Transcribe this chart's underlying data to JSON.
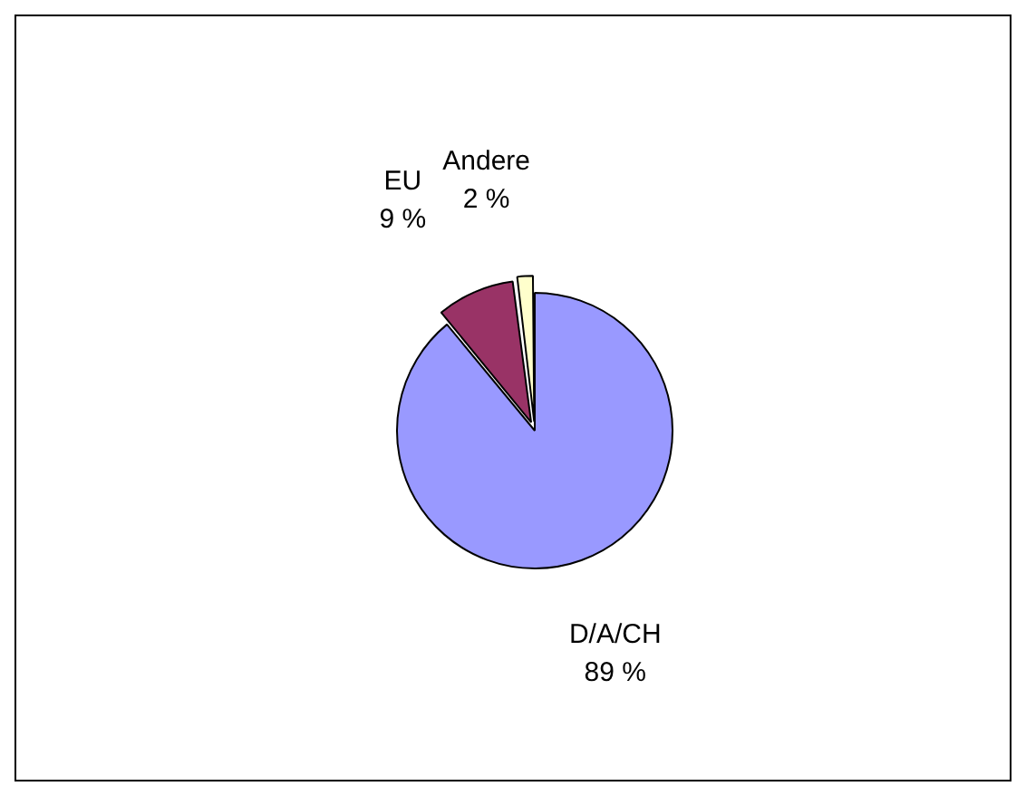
{
  "chart_data": {
    "type": "pie",
    "categories": [
      "D/A/CH",
      "EU",
      "Andere"
    ],
    "values": [
      89,
      9,
      2
    ],
    "colors": [
      "#9999ff",
      "#993366",
      "#ffffcc"
    ],
    "value_labels": [
      "89 %",
      "9 %",
      "2 %"
    ],
    "legend": false
  }
}
